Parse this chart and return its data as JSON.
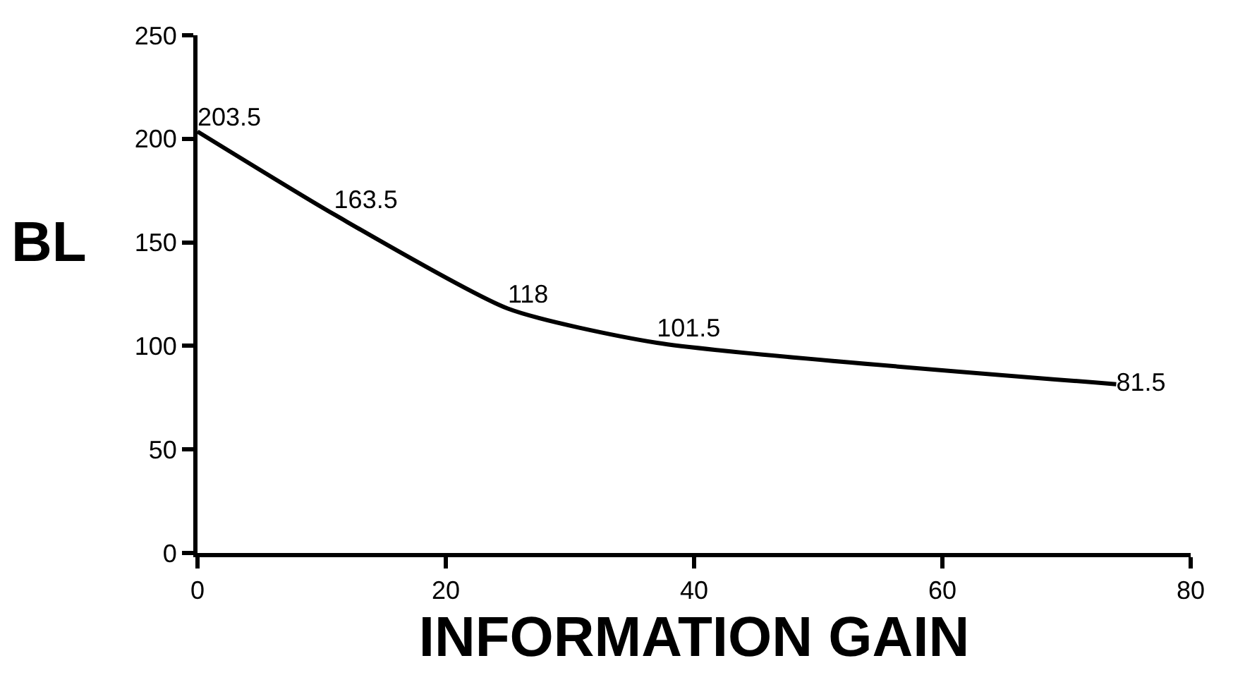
{
  "chart_data": {
    "type": "line",
    "xlabel": "INFORMATION GAIN",
    "ylabel": "BL",
    "x": [
      0,
      11,
      25,
      37,
      74
    ],
    "series": [
      {
        "color": "#000000",
        "values": [
          203.5,
          163.5,
          118,
          101.5,
          81.5
        ]
      }
    ],
    "xlim": [
      0,
      80
    ],
    "xticks": [
      0,
      20,
      40,
      60,
      80
    ],
    "ylim": [
      0,
      250
    ],
    "yticks": [
      0,
      50,
      100,
      150,
      200,
      250
    ],
    "grid": false,
    "marker": "none",
    "line_style": "solid",
    "data_labels": true
  }
}
